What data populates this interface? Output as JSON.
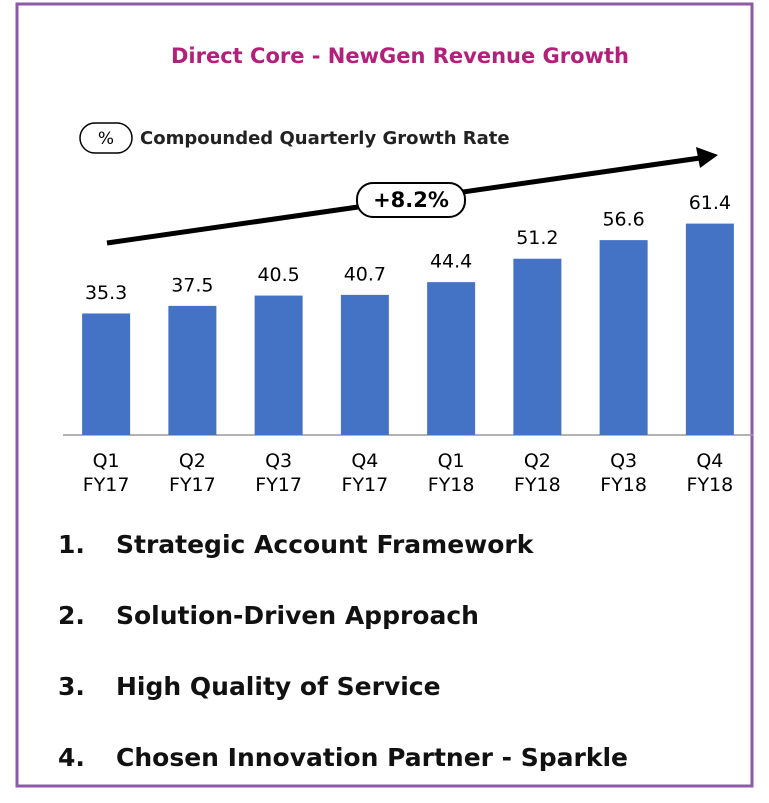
{
  "chart_data": {
    "type": "bar",
    "title": "Direct Core - NewGen Revenue Growth",
    "legend_symbol": "%",
    "legend_text": "Compounded Quarterly Growth Rate",
    "annotation": "+8.2%",
    "categories": [
      "Q1 FY17",
      "Q2 FY17",
      "Q3 FY17",
      "Q4 FY17",
      "Q1 FY18",
      "Q2 FY18",
      "Q3 FY18",
      "Q4 FY18"
    ],
    "values": [
      35.3,
      37.5,
      40.5,
      40.7,
      44.4,
      51.2,
      56.6,
      61.4
    ],
    "color": "#4472c4",
    "ylim": [
      0,
      70
    ]
  },
  "list": [
    {
      "number": "1.",
      "text": "Strategic Account Framework"
    },
    {
      "number": "2.",
      "text": "Solution-Driven Approach"
    },
    {
      "number": "3.",
      "text": "High Quality of Service"
    },
    {
      "number": "4.",
      "text": "Chosen Innovation Partner - Sparkle"
    }
  ]
}
